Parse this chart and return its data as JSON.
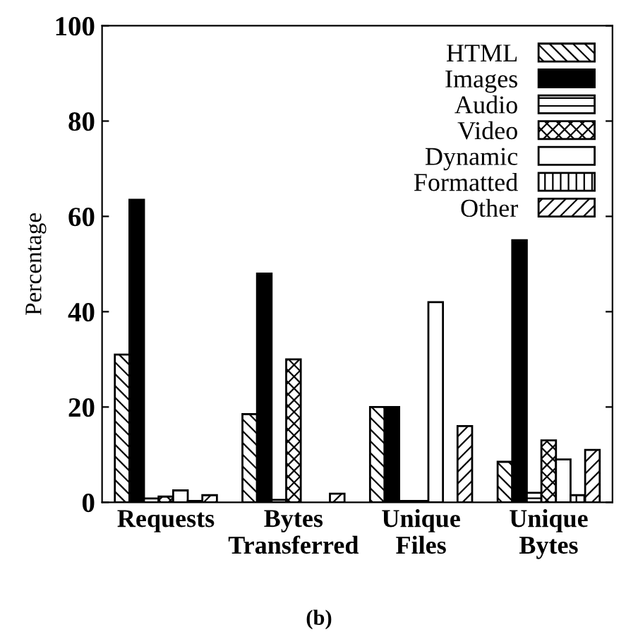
{
  "chart_data": {
    "type": "bar",
    "ylabel": "Percentage",
    "categories": [
      "Requests",
      "Bytes\nTransferred",
      "Unique\nFiles",
      "Unique\nBytes"
    ],
    "series": [
      {
        "name": "HTML",
        "color": "#000000",
        "values": [
          31,
          18.5,
          20,
          8.5
        ]
      },
      {
        "name": "Images",
        "color": "#000000",
        "values": [
          63.5,
          48,
          20,
          55
        ]
      },
      {
        "name": "Audio",
        "color": "#000000",
        "values": [
          0.8,
          0.5,
          0.3,
          2
        ]
      },
      {
        "name": "Video",
        "color": "#000000",
        "values": [
          1.2,
          30,
          0.3,
          13
        ]
      },
      {
        "name": "Dynamic",
        "color": "#ffffff",
        "values": [
          2.5,
          null,
          42,
          9
        ]
      },
      {
        "name": "Formatted",
        "color": "#000000",
        "values": [
          0.3,
          null,
          null,
          1.5
        ]
      },
      {
        "name": "Other",
        "color": "#000000",
        "values": [
          1.5,
          1.8,
          16,
          11
        ]
      }
    ],
    "ylim": [
      0,
      100
    ],
    "yticks": [
      0,
      20,
      40,
      60,
      80,
      100
    ],
    "legend": "top right",
    "annotations": [
      "(b)"
    ]
  }
}
